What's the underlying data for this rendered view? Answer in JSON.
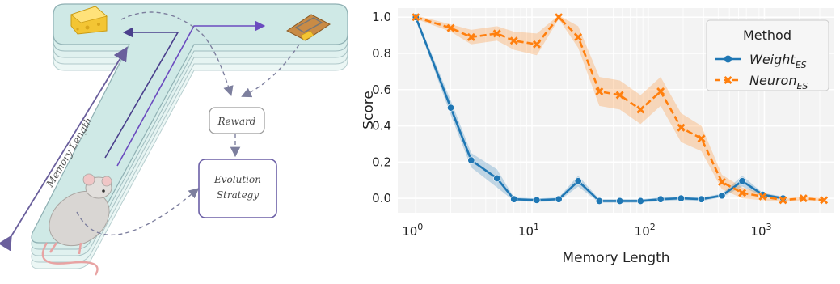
{
  "diagram": {
    "memory_length_label": "Memory Length",
    "reward_label": "Reward",
    "evolution_label_line1": "Evolution",
    "evolution_label_line2": "Strategy"
  },
  "chart_data": {
    "type": "line",
    "xlabel": "Memory Length",
    "ylabel": "Score",
    "xscale": "log",
    "xlim": [
      0.7,
      4000
    ],
    "ylim": [
      -0.08,
      1.05
    ],
    "yticks": [
      0.0,
      0.2,
      0.4,
      0.6,
      0.8,
      1.0
    ],
    "ytick_labels": [
      "0.0",
      "0.2",
      "0.4",
      "0.6",
      "0.8",
      "1.0"
    ],
    "xticks": [
      1,
      10,
      100,
      1000
    ],
    "xtick_labels": [
      {
        "base": "10",
        "exp": "0"
      },
      {
        "base": "10",
        "exp": "1"
      },
      {
        "base": "10",
        "exp": "2"
      },
      {
        "base": "10",
        "exp": "3"
      }
    ],
    "grid": true,
    "legend": {
      "title": "Method",
      "placement": "top-right",
      "entries": [
        {
          "base": "Weight",
          "sub": "ES"
        },
        {
          "base": "Neuron",
          "sub": "ES"
        }
      ]
    },
    "series": [
      {
        "color": "#1f77b4",
        "marker": "circle",
        "linestyle": "solid",
        "x": [
          1,
          2,
          3,
          5,
          7,
          11,
          17,
          25,
          38,
          57,
          86,
          128,
          192,
          287,
          431,
          645,
          968,
          1447
        ],
        "y": [
          1.0,
          0.5,
          0.21,
          0.11,
          -0.005,
          -0.01,
          -0.005,
          0.095,
          -0.015,
          -0.015,
          -0.015,
          -0.005,
          0.0,
          -0.005,
          0.015,
          0.095,
          0.02,
          0.0
        ],
        "band": [
          0.01,
          0.04,
          0.04,
          0.05,
          0.01,
          0.01,
          0.01,
          0.03,
          0.01,
          0.01,
          0.01,
          0.01,
          0.01,
          0.01,
          0.01,
          0.03,
          0.01,
          0.01
        ]
      },
      {
        "color": "#ff7f0e",
        "marker": "x",
        "linestyle": "dashed",
        "x": [
          1,
          2,
          3,
          5,
          7,
          11,
          17,
          25,
          38,
          57,
          86,
          128,
          192,
          287,
          431,
          645,
          968,
          1447,
          2170,
          3255
        ],
        "y": [
          1.0,
          0.94,
          0.89,
          0.91,
          0.87,
          0.85,
          1.0,
          0.89,
          0.59,
          0.57,
          0.49,
          0.59,
          0.39,
          0.33,
          0.09,
          0.03,
          0.01,
          -0.01,
          0.0,
          -0.01
        ],
        "band": [
          0.01,
          0.02,
          0.04,
          0.04,
          0.05,
          0.06,
          0.01,
          0.06,
          0.08,
          0.08,
          0.08,
          0.08,
          0.08,
          0.07,
          0.04,
          0.03,
          0.02,
          0.01,
          0.01,
          0.01
        ]
      }
    ]
  }
}
